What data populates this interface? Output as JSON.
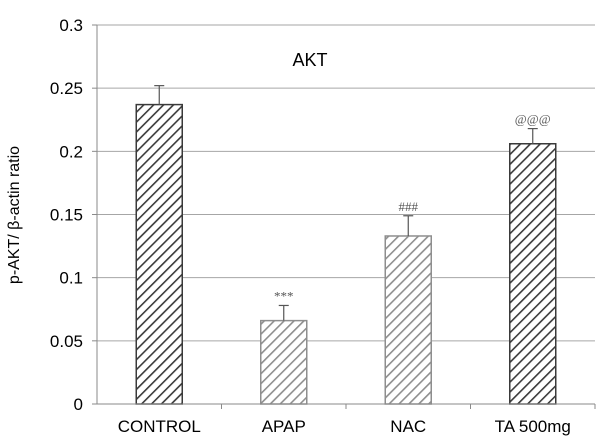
{
  "chart_data": {
    "type": "bar",
    "title": "AKT",
    "xlabel": "",
    "ylabel": "p-AKT/ β-actin ratio",
    "ylim": [
      0,
      0.3
    ],
    "yticks": [
      "0",
      "0.05",
      "0.1",
      "0.15",
      "0.2",
      "0.25",
      "0.3"
    ],
    "grid": true,
    "categories": [
      "CONTROL",
      "APAP",
      "NAC",
      "TA 500mg"
    ],
    "values": [
      0.237,
      0.066,
      0.133,
      0.206
    ],
    "errors": [
      0.015,
      0.012,
      0.016,
      0.012
    ],
    "annotations": [
      "",
      "***",
      "###",
      "@@@"
    ],
    "colors": {
      "dark": "#3a3a3a",
      "light": "#8e8e8e"
    },
    "bar_shades": [
      "dark",
      "light",
      "light",
      "dark"
    ]
  }
}
